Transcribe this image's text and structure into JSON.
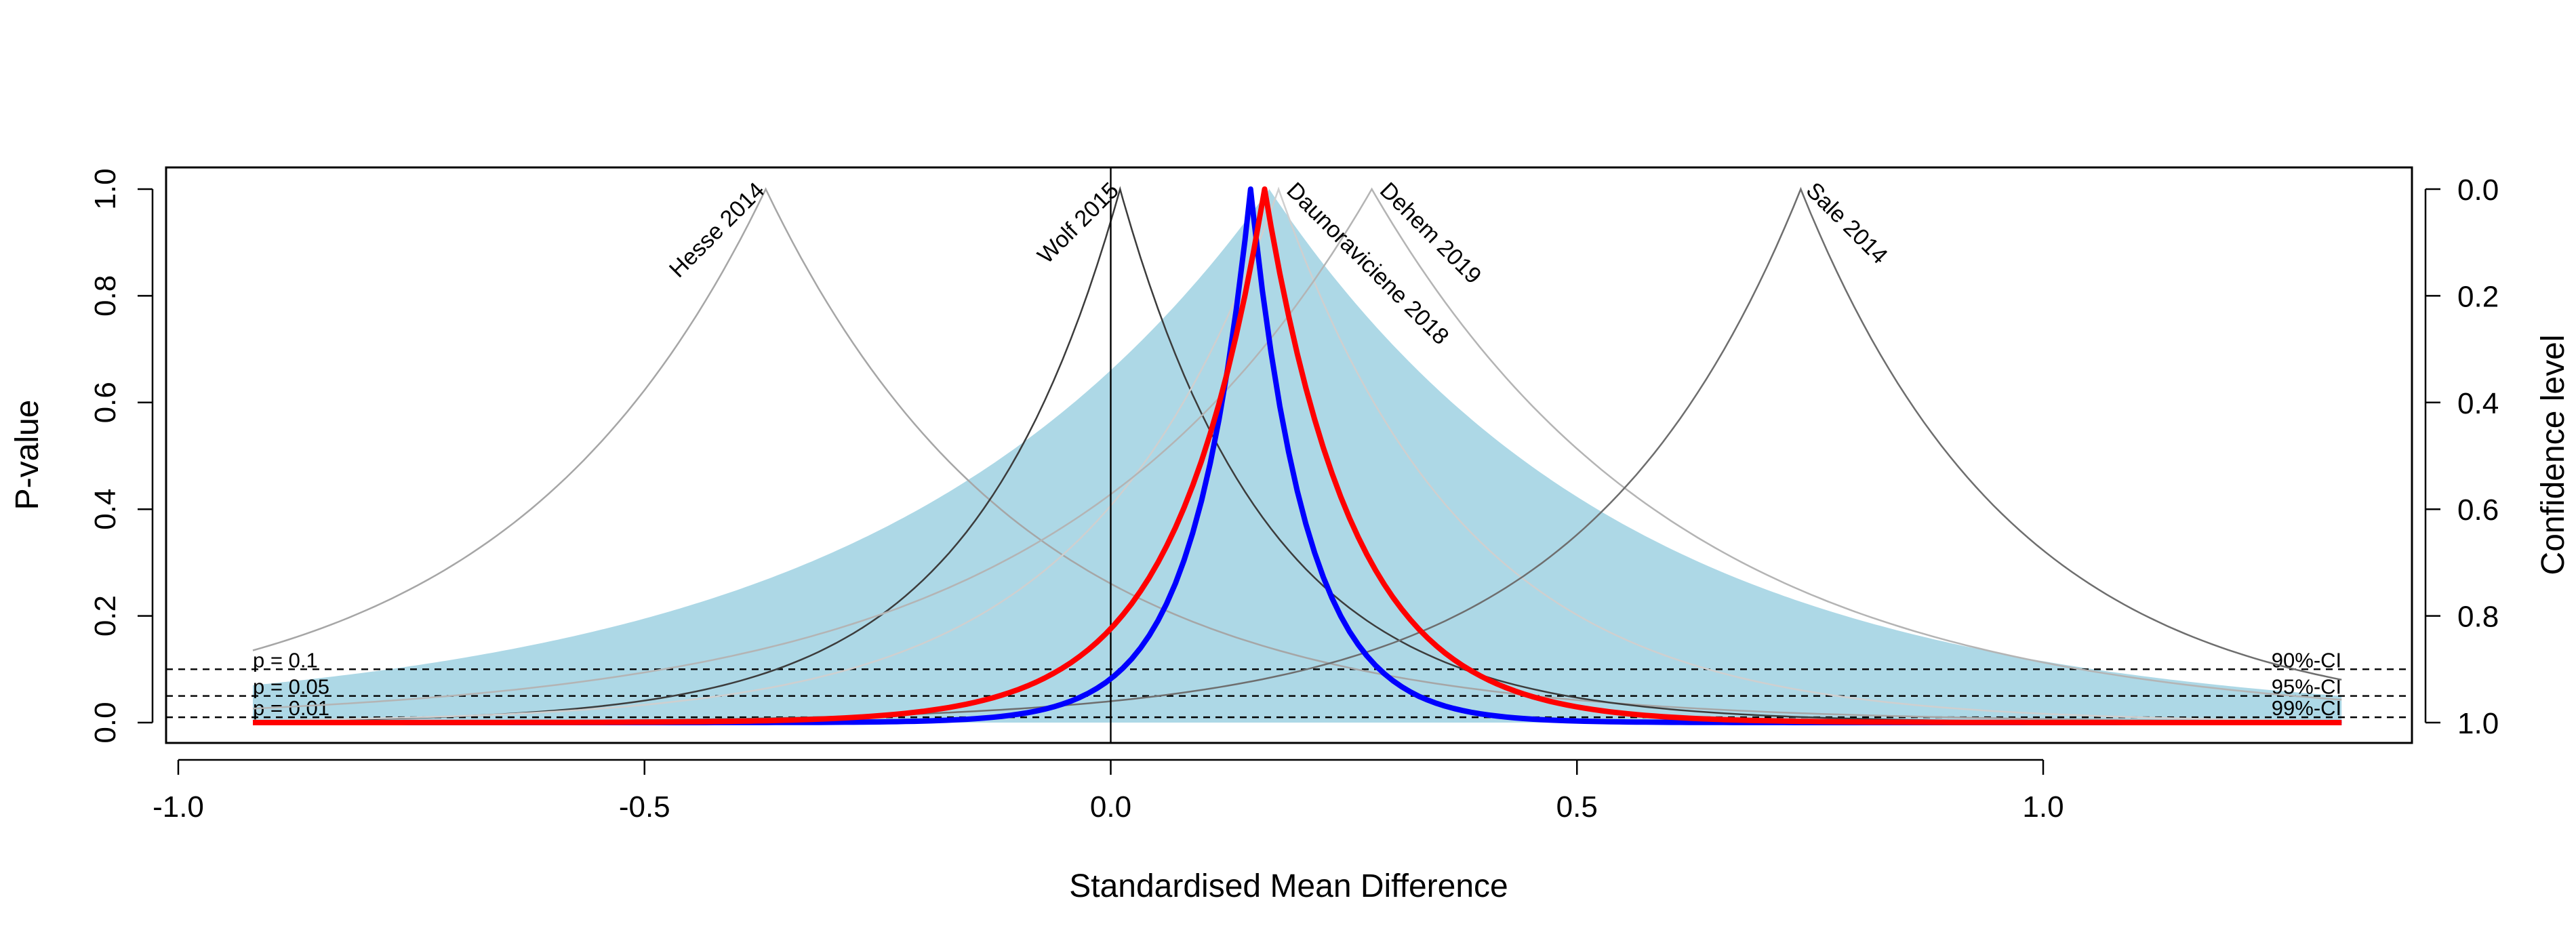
{
  "chart_data": {
    "type": "line",
    "title": "",
    "xlabel": "Standardised Mean Difference",
    "ylabel": "P-value",
    "ylabel_right": "Confidence level",
    "xlim": [
      -0.92,
      1.32
    ],
    "ylim": [
      0,
      1
    ],
    "x_ticks": [
      -1.0,
      -0.5,
      0.0,
      0.5,
      1.0
    ],
    "x_tick_labels": [
      "-1.0",
      "-0.5",
      "0.0",
      "0.5",
      "1.0"
    ],
    "y_ticks": [
      0.0,
      0.2,
      0.4,
      0.6,
      0.8,
      1.0
    ],
    "y_tick_labels": [
      "0.0",
      "0.2",
      "0.4",
      "0.6",
      "0.8",
      "1.0"
    ],
    "y2_tick_labels": [
      "1.0",
      "0.8",
      "0.6",
      "0.4",
      "0.2",
      "0.0"
    ],
    "vertical_reference_x": 0.0,
    "thresholds": [
      {
        "p": 0.1,
        "left_label": "p = 0.1",
        "right_label": "90%-CI"
      },
      {
        "p": 0.05,
        "left_label": "p = 0.05",
        "right_label": "95%-CI"
      },
      {
        "p": 0.01,
        "left_label": "p = 0.01",
        "right_label": "99%-CI"
      }
    ],
    "shaded_region": {
      "center": 0.17,
      "p_at_left_end": 0.07,
      "p_at_right_end": 0.05,
      "color": "#add8e6"
    },
    "studies": [
      {
        "label": "Hesse 2014",
        "estimate": -0.37,
        "scale": 0.275,
        "color": "#a6a6a6"
      },
      {
        "label": "Wolf 2015",
        "estimate": 0.01,
        "scale": 0.16,
        "color": "#3c3c3c"
      },
      {
        "label": "Daunoraviciene 2018",
        "estimate": 0.18,
        "scale": 0.2,
        "color": "#cfcfcf"
      },
      {
        "label": "Dehem 2019",
        "estimate": 0.28,
        "scale": 0.33,
        "color": "#b4b4b4"
      },
      {
        "label": "Sale 2014",
        "estimate": 0.74,
        "scale": 0.23,
        "color": "#6e6e6e"
      }
    ],
    "pooled": [
      {
        "estimate": 0.15,
        "scale": 0.06,
        "color": "#0000ff"
      },
      {
        "estimate": 0.165,
        "scale": 0.095,
        "color": "#ff0000"
      }
    ],
    "grid": false
  }
}
